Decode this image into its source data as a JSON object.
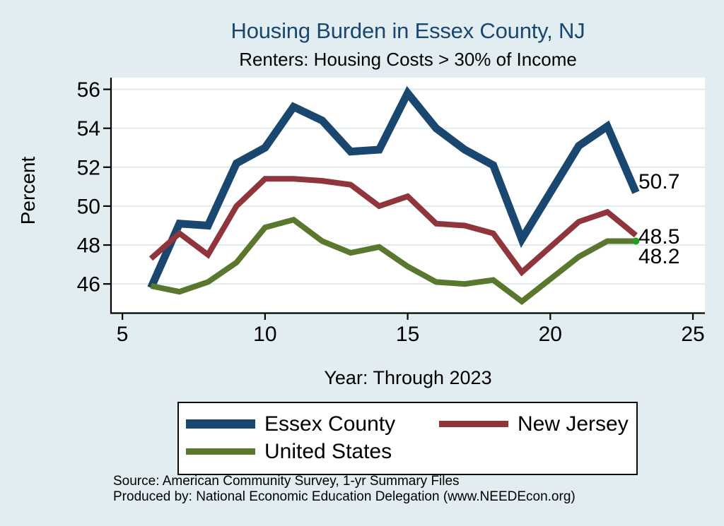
{
  "header": {
    "title": "Housing Burden in Essex County, NJ",
    "subtitle": "Renters: Housing Costs > 30% of Income"
  },
  "axes": {
    "x_title": "Year: Through 2023",
    "y_title": "Percent"
  },
  "legend": {
    "items": [
      {
        "label": "Essex County"
      },
      {
        "label": "New Jersey"
      },
      {
        "label": "United States"
      }
    ]
  },
  "footer": {
    "source": "Source: American Community Survey, 1-yr Summary Files",
    "produced_by": "Produced by: National Economic Education Delegation (www.NEEDEcon.org)"
  },
  "chart_data": {
    "type": "line",
    "title": "Housing Burden in Essex County, NJ",
    "subtitle": "Renters: Housing Costs > 30% of Income",
    "xlabel": "Year: Through 2023",
    "ylabel": "Percent",
    "x": [
      6,
      7,
      8,
      9,
      10,
      11,
      12,
      13,
      14,
      15,
      16,
      17,
      18,
      19,
      21,
      22,
      23
    ],
    "x_ticks": [
      5,
      10,
      15,
      20,
      25
    ],
    "y_ticks": [
      46,
      48,
      50,
      52,
      54,
      56
    ],
    "xlim": [
      4.6,
      25.42
    ],
    "ylim": [
      44.5,
      56.6
    ],
    "grid": "horizontal-only",
    "legend_position": "bottom",
    "colors": {
      "background": "#e2edf1",
      "plot_background": "#ffffff",
      "gridline": "#dfeaee",
      "axis": "#000000",
      "title": "#1a476f",
      "end_marker": "#229c22"
    },
    "series": [
      {
        "name": "Essex County",
        "color": "#1a476f",
        "line_width": 11,
        "values": [
          45.8,
          49.1,
          49.0,
          52.2,
          53.0,
          55.1,
          54.4,
          52.8,
          52.9,
          55.8,
          54.0,
          52.9,
          52.1,
          48.3,
          53.1,
          54.1,
          50.7
        ],
        "end_label": "50.7",
        "end_label_dy": -16,
        "end_marker": false
      },
      {
        "name": "New Jersey",
        "color": "#90353b",
        "line_width": 8,
        "values": [
          47.3,
          48.6,
          47.5,
          50.0,
          51.4,
          51.4,
          51.3,
          51.1,
          50.0,
          50.5,
          49.1,
          49.0,
          48.6,
          46.6,
          49.2,
          49.7,
          48.5
        ],
        "end_label": "48.5",
        "end_label_dy": 1,
        "end_marker": false
      },
      {
        "name": "United States",
        "color": "#5a772e",
        "line_width": 8,
        "values": [
          45.9,
          45.6,
          46.1,
          47.1,
          48.9,
          49.3,
          48.2,
          47.6,
          47.9,
          46.9,
          46.1,
          46.0,
          46.2,
          45.1,
          47.4,
          48.2,
          48.2
        ],
        "end_label": "48.2",
        "end_label_dy": 21,
        "end_marker": true
      }
    ]
  }
}
